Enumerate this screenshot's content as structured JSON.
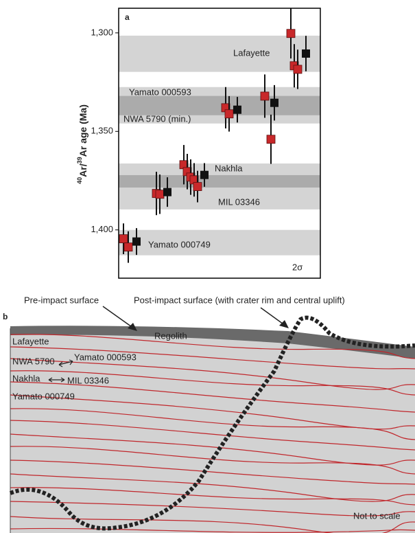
{
  "chart_data": {
    "type": "errorbar",
    "panel_label": "a",
    "y_label_parts": [
      "40",
      "Ar/",
      "39",
      "Ar age (Ma)"
    ],
    "ylim": [
      1424.5,
      1287.5
    ],
    "yticks": [
      {
        "value": 1300,
        "label": "1,300"
      },
      {
        "value": 1350,
        "label": "1,350"
      },
      {
        "value": 1400,
        "label": "1,400"
      }
    ],
    "bands": [
      {
        "name": "Lafayette",
        "from": 1301.4,
        "to": 1319.8,
        "color": "#d4d4d4"
      },
      {
        "name": "Yamato 000593",
        "from": 1327.5,
        "to": 1346.0,
        "color": "#d4d4d4"
      },
      {
        "name": "NWA 5790 (min.)",
        "from": 1332.0,
        "to": 1341.8,
        "color": "#ababab"
      },
      {
        "name": "Nakhla",
        "from": 1366.3,
        "to": 1389.6,
        "color": "#d4d4d4"
      },
      {
        "name": "MIL 03346",
        "from": 1372.2,
        "to": 1378.5,
        "color": "#ababab"
      },
      {
        "name": "Yamato 000749",
        "from": 1400.0,
        "to": 1412.9,
        "color": "#d4d4d4"
      }
    ],
    "points": [
      {
        "value": 1404.5,
        "error": 7.8,
        "color": "#c8282a"
      },
      {
        "value": 1408.7,
        "error": 8,
        "color": "#c8282a"
      },
      {
        "value": 1405.9,
        "error": 6.8,
        "color": "#111111"
      },
      {
        "value": 1381.5,
        "error": 11,
        "color": "#c8282a"
      },
      {
        "value": 1381.9,
        "error": 10,
        "color": "#c8282a"
      },
      {
        "value": 1380.8,
        "error": 7.5,
        "color": "#111111"
      },
      {
        "value": 1366.9,
        "error": 10,
        "color": "#c8282a"
      },
      {
        "value": 1370.4,
        "error": 9,
        "color": "#c8282a"
      },
      {
        "value": 1373.2,
        "error": 9,
        "color": "#c8282a"
      },
      {
        "value": 1374.6,
        "error": 8.5,
        "color": "#c8282a"
      },
      {
        "value": 1378.0,
        "error": 8,
        "color": "#c8282a"
      },
      {
        "value": 1372.1,
        "error": 6,
        "color": "#111111"
      },
      {
        "value": 1338.0,
        "error": 10.5,
        "color": "#c8282a"
      },
      {
        "value": 1341.1,
        "error": 9,
        "color": "#c8282a"
      },
      {
        "value": 1339.0,
        "error": 6.5,
        "color": "#111111"
      },
      {
        "value": 1332.1,
        "error": 11,
        "color": "#c8282a"
      },
      {
        "value": 1354.0,
        "error": 12.5,
        "color": "#c8282a"
      },
      {
        "value": 1335.5,
        "error": 9,
        "color": "#111111"
      },
      {
        "value": 1300.3,
        "error": 12.7,
        "color": "#c8282a"
      },
      {
        "value": 1316.7,
        "error": 11,
        "color": "#c8282a"
      },
      {
        "value": 1318.5,
        "error": 10,
        "color": "#c8282a"
      },
      {
        "value": 1310.5,
        "error": 9,
        "color": "#111111"
      }
    ],
    "sigma_label": "2σ"
  },
  "diagram": {
    "panel_label": "b",
    "pre_impact": "Pre-impact surface",
    "post_impact": "Post-impact surface (with crater rim and central uplift)",
    "regolith": "Regolith",
    "layers": {
      "lafayette": "Lafayette",
      "nwa": "NWA 5790",
      "yamato593": "Yamato 000593",
      "nakhla": "Nakhla",
      "mil": "MIL 03346",
      "yamato749": "Yamato 000749"
    },
    "note": "Not to scale"
  }
}
